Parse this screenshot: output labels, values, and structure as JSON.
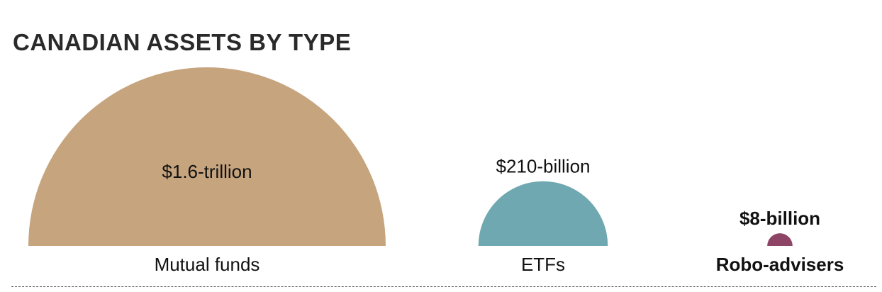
{
  "chart_data": {
    "type": "semicircle-area",
    "title": "CANADIAN ASSETS BY TYPE",
    "categories": [
      "Mutual funds",
      "ETFs",
      "Robo-advisers"
    ],
    "values_billion": [
      1600,
      210,
      8
    ],
    "value_labels": [
      "$1.6-trillion",
      "$210-billion",
      "$8-billion"
    ],
    "highlight": [
      false,
      false,
      true
    ],
    "colors": [
      "#c6a47e",
      "#6fa8b1",
      "#8e4565"
    ]
  }
}
